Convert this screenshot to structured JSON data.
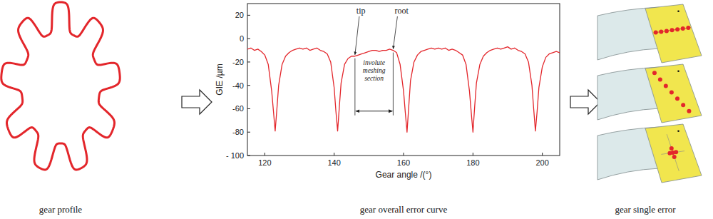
{
  "panels": [
    {
      "caption": "gear profile"
    },
    {
      "caption": "gear overall error curve"
    },
    {
      "caption": "gear single error"
    }
  ],
  "chart_data": {
    "type": "line",
    "x_label": "Gear angle /(°)",
    "y_label": "GIE /µm",
    "xlim": [
      115,
      205
    ],
    "ylim": [
      -100,
      30
    ],
    "xticks": [
      120,
      140,
      160,
      180,
      200
    ],
    "yticks": [
      20,
      0,
      -20,
      -40,
      -60,
      -80,
      {
        "value": -100,
        "label": "- 100"
      }
    ],
    "x": [
      115,
      116,
      117,
      118,
      119,
      120,
      121,
      122,
      122.5,
      123,
      123.5,
      124,
      125,
      126,
      127,
      128,
      129,
      130,
      131,
      132,
      133,
      134,
      135,
      136,
      137,
      138,
      139,
      140,
      140.5,
      141,
      141.5,
      142,
      143,
      144,
      145,
      146,
      147,
      148,
      149,
      150,
      151,
      152,
      153,
      154,
      155,
      156,
      157,
      158,
      159,
      160,
      160.5,
      161,
      161.5,
      162,
      163,
      164,
      165,
      166,
      167,
      168,
      169,
      170,
      171,
      172,
      173,
      174,
      175,
      176,
      177,
      178,
      179,
      179.5,
      180,
      180.5,
      181,
      182,
      183,
      184,
      185,
      186,
      187,
      188,
      189,
      190,
      191,
      192,
      193,
      194,
      195,
      196,
      197,
      197.5,
      198,
      198.5,
      199,
      200,
      201,
      202,
      203,
      204,
      205
    ],
    "series": [
      {
        "color": "#e3262b",
        "values": [
          -9,
          -8,
          -10,
          -9,
          -11,
          -14,
          -22,
          -45,
          -62,
          -79,
          -60,
          -40,
          -22,
          -15,
          -12,
          -10,
          -9,
          -8,
          -9,
          -8,
          -10,
          -9,
          -8,
          -10,
          -11,
          -13,
          -20,
          -42,
          -62,
          -79,
          -58,
          -38,
          -22,
          -17,
          -15,
          -15,
          -14,
          -13,
          -12,
          -11,
          -10,
          -10,
          -11,
          -10,
          -10,
          -9,
          -10,
          -12,
          -22,
          -45,
          -63,
          -80,
          -58,
          -36,
          -20,
          -14,
          -11,
          -10,
          -9,
          -8,
          -9,
          -8,
          -9,
          -8,
          -10,
          -9,
          -10,
          -12,
          -14,
          -22,
          -45,
          -63,
          -80,
          -58,
          -38,
          -22,
          -15,
          -12,
          -10,
          -9,
          -8,
          -9,
          -8,
          -7,
          -9,
          -8,
          -10,
          -11,
          -13,
          -20,
          -40,
          -60,
          -79,
          -62,
          -42,
          -24,
          -16,
          -13,
          -12,
          -11,
          -12
        ]
      }
    ],
    "annotations": [
      {
        "text": "tip",
        "x": 146
      },
      {
        "text": "root",
        "x": 157
      },
      {
        "text": "involute meshing section",
        "x": [
          146,
          157
        ],
        "y": -62
      }
    ]
  }
}
